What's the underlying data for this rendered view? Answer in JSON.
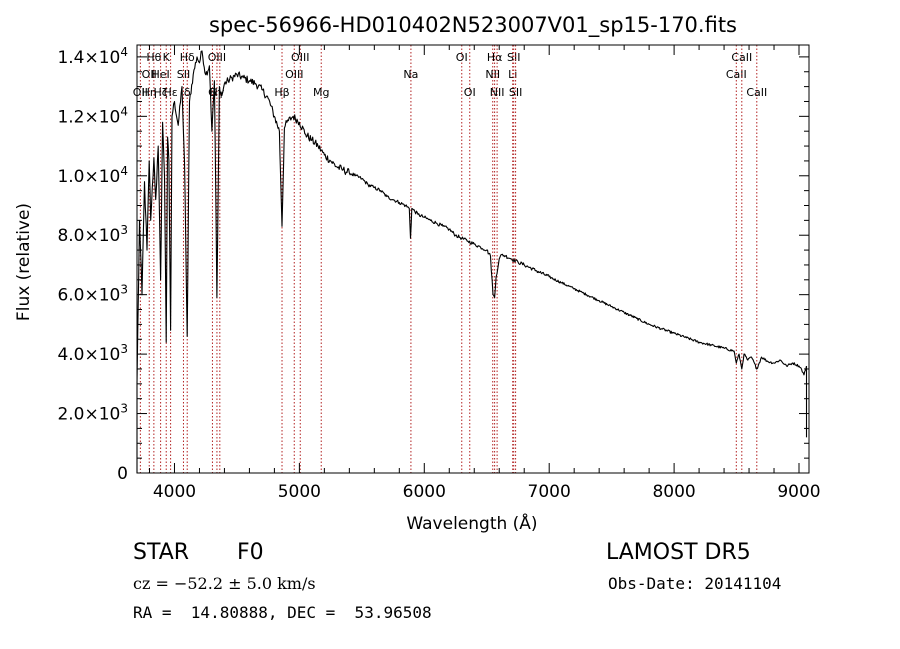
{
  "chart_data": {
    "type": "line",
    "title": "spec-56966-HD010402N523007V01_sp15-170.fits",
    "xlabel": "Wavelength (Å)",
    "ylabel": "Flux (relative)",
    "xlim": [
      3700,
      9080
    ],
    "ylim": [
      0,
      14400
    ],
    "xticks": [
      {
        "value": 4000,
        "label": "4000"
      },
      {
        "value": 5000,
        "label": "5000"
      },
      {
        "value": 6000,
        "label": "6000"
      },
      {
        "value": 7000,
        "label": "7000"
      },
      {
        "value": 8000,
        "label": "8000"
      },
      {
        "value": 9000,
        "label": "9000"
      }
    ],
    "yticks": [
      {
        "value": 0,
        "mant": "0",
        "exp": ""
      },
      {
        "value": 2000,
        "mant": "2.0×10",
        "exp": "3"
      },
      {
        "value": 4000,
        "mant": "4.0×10",
        "exp": "3"
      },
      {
        "value": 6000,
        "mant": "6.0×10",
        "exp": "3"
      },
      {
        "value": 8000,
        "mant": "8.0×10",
        "exp": "3"
      },
      {
        "value": 10000,
        "mant": "1.0×10",
        "exp": "4"
      },
      {
        "value": 12000,
        "mant": "1.2×10",
        "exp": "4"
      },
      {
        "value": 14000,
        "mant": "1.4×10",
        "exp": "4"
      }
    ],
    "grid": false,
    "line_color": "#000000",
    "marker_color": "#b22222",
    "series": [
      {
        "x": [
          3700,
          3720,
          3740,
          3760,
          3780,
          3798,
          3810,
          3835,
          3850,
          3870,
          3889,
          3905,
          3920,
          3934,
          3945,
          3955,
          3969,
          3980,
          4000,
          4030,
          4060,
          4080,
          4102,
          4120,
          4150,
          4180,
          4200,
          4220,
          4250,
          4280,
          4300,
          4320,
          4340,
          4360,
          4380,
          4400,
          4430,
          4460,
          4500,
          4550,
          4600,
          4650,
          4700,
          4750,
          4800,
          4840,
          4861,
          4880,
          4900,
          4950,
          5000,
          5050,
          5100,
          5150,
          5200,
          5250,
          5300,
          5350,
          5400,
          5450,
          5500,
          5550,
          5600,
          5650,
          5700,
          5750,
          5800,
          5850,
          5880,
          5890,
          5900,
          5950,
          6000,
          6050,
          6100,
          6150,
          6200,
          6250,
          6300,
          6350,
          6400,
          6450,
          6500,
          6530,
          6550,
          6563,
          6575,
          6600,
          6620,
          6650,
          6700,
          6750,
          6800,
          6900,
          7000,
          7100,
          7200,
          7300,
          7400,
          7500,
          7600,
          7700,
          7800,
          7900,
          8000,
          8100,
          8200,
          8300,
          8400,
          8480,
          8498,
          8520,
          8542,
          8560,
          8590,
          8620,
          8662,
          8700,
          8750,
          8800,
          8850,
          8900,
          8950,
          9000,
          9020,
          9040,
          9060
        ],
        "y": [
          3000,
          8500,
          6000,
          9800,
          7500,
          10500,
          8500,
          10600,
          9200,
          11000,
          6500,
          11800,
          10000,
          4400,
          11300,
          10500,
          4800,
          12000,
          12500,
          11700,
          13000,
          10500,
          4600,
          12500,
          13400,
          14000,
          13800,
          14200,
          13400,
          13700,
          11500,
          13200,
          5900,
          13000,
          12700,
          13100,
          13200,
          13300,
          13400,
          13300,
          13200,
          13100,
          12900,
          12600,
          12000,
          11500,
          8300,
          11600,
          11800,
          12000,
          11800,
          11400,
          11200,
          11000,
          10700,
          10500,
          10300,
          10200,
          10100,
          10000,
          9900,
          9700,
          9600,
          9500,
          9300,
          9200,
          9100,
          9000,
          8900,
          7900,
          8900,
          8700,
          8600,
          8500,
          8400,
          8300,
          8200,
          8000,
          7900,
          7800,
          7700,
          7600,
          7500,
          7300,
          6000,
          5900,
          6600,
          7200,
          7350,
          7300,
          7200,
          7100,
          7000,
          6800,
          6600,
          6400,
          6200,
          6000,
          5800,
          5600,
          5400,
          5200,
          5000,
          4850,
          4700,
          4550,
          4400,
          4300,
          4200,
          4100,
          3700,
          4000,
          3500,
          4000,
          3800,
          3900,
          3500,
          3900,
          3750,
          3700,
          3800,
          3600,
          3700,
          3600,
          3500,
          3300,
          3600
        ]
      }
    ],
    "line_markers": [
      {
        "x": 3727,
        "upper": "",
        "middle": "",
        "lower": "OII"
      },
      {
        "x": 3798,
        "upper": "",
        "middle": "OII",
        "lower": "Hη"
      },
      {
        "x": 3835,
        "upper": "Hθ",
        "middle": "",
        "lower": ""
      },
      {
        "x": 3889,
        "upper": "",
        "middle": "HeI",
        "lower": "Hζ"
      },
      {
        "x": 3934,
        "upper": "K",
        "middle": "",
        "lower": ""
      },
      {
        "x": 3969,
        "upper": "",
        "middle": "",
        "lower": "Hε"
      },
      {
        "x": 4072,
        "upper": "",
        "middle": "SII",
        "lower": ""
      },
      {
        "x": 4102,
        "upper": "Hδ",
        "middle": "",
        "lower": "δ"
      },
      {
        "x": 4304,
        "upper": "",
        "middle": "",
        "lower": "G"
      },
      {
        "x": 4340,
        "upper": "OIII",
        "middle": "",
        "lower": "Hγ"
      },
      {
        "x": 4363,
        "upper": "",
        "middle": "",
        "lower": ""
      },
      {
        "x": 4861,
        "upper": "",
        "middle": "",
        "lower": "Hβ"
      },
      {
        "x": 4959,
        "upper": "",
        "middle": "OIII",
        "lower": ""
      },
      {
        "x": 5007,
        "upper": "OIII",
        "middle": "",
        "lower": ""
      },
      {
        "x": 5175,
        "upper": "",
        "middle": "",
        "lower": "Mg"
      },
      {
        "x": 5893,
        "upper": "",
        "middle": "Na",
        "lower": ""
      },
      {
        "x": 6300,
        "upper": "OI",
        "middle": "",
        "lower": ""
      },
      {
        "x": 6364,
        "upper": "",
        "middle": "",
        "lower": "OI"
      },
      {
        "x": 6548,
        "upper": "",
        "middle": "NII",
        "lower": ""
      },
      {
        "x": 6563,
        "upper": "Hα",
        "middle": "",
        "lower": ""
      },
      {
        "x": 6583,
        "upper": "",
        "middle": "",
        "lower": "NII"
      },
      {
        "x": 6708,
        "upper": "",
        "middle": "Li",
        "lower": ""
      },
      {
        "x": 6716,
        "upper": "SII",
        "middle": "",
        "lower": ""
      },
      {
        "x": 6731,
        "upper": "",
        "middle": "",
        "lower": "SII"
      },
      {
        "x": 8498,
        "upper": "",
        "middle": "CaII",
        "lower": ""
      },
      {
        "x": 8542,
        "upper": "CaII",
        "middle": "",
        "lower": ""
      },
      {
        "x": 8662,
        "upper": "",
        "middle": "",
        "lower": "CaII"
      }
    ]
  },
  "info": {
    "object_class": "STAR",
    "subclass": "F0",
    "survey": "LAMOST DR5",
    "cz_line": "cz = −52.2 ± 5.0 km/s",
    "obs_date": "Obs-Date: 20141104",
    "coords": "RA =  14.80888, DEC =  53.96508"
  }
}
